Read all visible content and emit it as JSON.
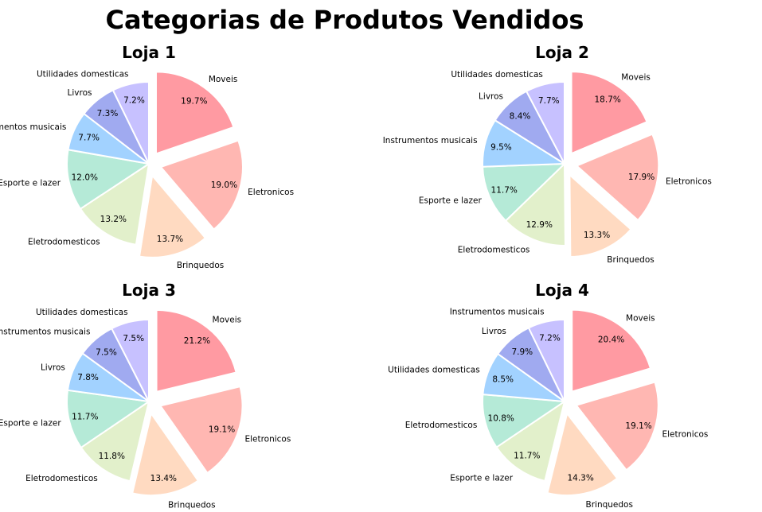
{
  "chart_data": {
    "type": "pie",
    "title": "Categorias de Produtos Vendidos",
    "colors": [
      "#ff9aa2",
      "#ffb7b2",
      "#ffdac1",
      "#e2f0cb",
      "#b5ead7",
      "#a2d2ff",
      "#a0aaf0",
      "#c7c1ff"
    ],
    "explode": [
      0.15,
      0.15,
      0.15,
      0,
      0,
      0,
      0,
      0
    ],
    "start_angle": 90,
    "direction": "clockwise",
    "pies": [
      {
        "title": "Loja 1",
        "labels": [
          "Moveis",
          "Eletronicos",
          "Brinquedos",
          "Eletrodomesticos",
          "Esporte e lazer",
          "Instrumentos musicais",
          "Livros",
          "Utilidades domesticas"
        ],
        "values": [
          19.7,
          19.0,
          13.7,
          13.2,
          12.0,
          7.7,
          7.3,
          7.2
        ],
        "pct_labels": [
          "19.7%",
          "19.0%",
          "13.7%",
          "13.2%",
          "12.0%",
          "7.7%",
          "7.3%",
          "7.2%"
        ]
      },
      {
        "title": "Loja 2",
        "labels": [
          "Moveis",
          "Eletronicos",
          "Brinquedos",
          "Eletrodomesticos",
          "Esporte e lazer",
          "Instrumentos musicais",
          "Livros",
          "Utilidades domesticas"
        ],
        "values": [
          18.7,
          17.9,
          13.3,
          12.9,
          11.7,
          9.5,
          8.4,
          7.7
        ],
        "pct_labels": [
          "18.7%",
          "17.9%",
          "13.3%",
          "12.9%",
          "11.7%",
          "9.5%",
          "8.4%",
          "7.7%"
        ]
      },
      {
        "title": "Loja 3",
        "labels": [
          "Moveis",
          "Eletronicos",
          "Brinquedos",
          "Eletrodomesticos",
          "Esporte e lazer",
          "Livros",
          "Instrumentos musicais",
          "Utilidades domesticas"
        ],
        "values": [
          21.2,
          19.1,
          13.4,
          11.8,
          11.7,
          7.8,
          7.5,
          7.5
        ],
        "pct_labels": [
          "21.2%",
          "19.1%",
          "13.4%",
          "11.8%",
          "11.7%",
          "7.8%",
          "7.5%",
          "7.5%"
        ]
      },
      {
        "title": "Loja 4",
        "labels": [
          "Moveis",
          "Eletronicos",
          "Brinquedos",
          "Esporte e lazer",
          "Eletrodomesticos",
          "Utilidades domesticas",
          "Livros",
          "Instrumentos musicais"
        ],
        "values": [
          20.4,
          19.1,
          14.3,
          11.7,
          10.8,
          8.5,
          7.9,
          7.2
        ],
        "pct_labels": [
          "20.4%",
          "19.1%",
          "14.3%",
          "11.7%",
          "10.8%",
          "8.5%",
          "7.9%",
          "7.2%"
        ]
      }
    ]
  }
}
